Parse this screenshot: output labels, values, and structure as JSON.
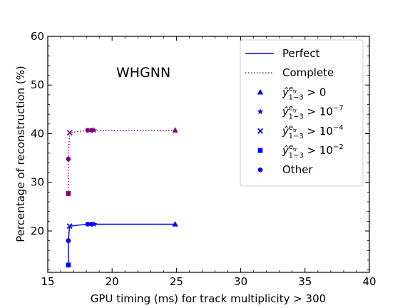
{
  "chart_data": {
    "type": "scatter",
    "annotation": "WHGNN",
    "xlabel": "GPU timing (ms) for track multiplicity > 300",
    "ylabel": "Percentage of reconstruction (%)",
    "xlim": [
      15,
      40
    ],
    "ylim": [
      11.5,
      60
    ],
    "xticks": [
      15,
      20,
      25,
      30,
      35,
      40
    ],
    "yticks": [
      20,
      30,
      40,
      50,
      60
    ],
    "grid": false,
    "legend_placement": "top-right",
    "colors": {
      "perfect": "#0000ff",
      "complete": "#800080"
    },
    "series": [
      {
        "name": "Perfect",
        "line": "solid",
        "color": "#0000ff",
        "points": [
          {
            "x": 16.6,
            "y": 13.0,
            "marker": "square"
          },
          {
            "x": 16.6,
            "y": 18.0,
            "marker": "circle"
          },
          {
            "x": 16.7,
            "y": 21.0,
            "marker": "x"
          },
          {
            "x": 18.1,
            "y": 21.4,
            "marker": "circle"
          },
          {
            "x": 18.4,
            "y": 21.4,
            "marker": "circle"
          },
          {
            "x": 18.6,
            "y": 21.4,
            "marker": "star"
          },
          {
            "x": 24.9,
            "y": 21.4,
            "marker": "triangle"
          }
        ]
      },
      {
        "name": "Complete",
        "line": "dotted",
        "color": "#800080",
        "points": [
          {
            "x": 16.6,
            "y": 27.7,
            "marker": "square"
          },
          {
            "x": 16.6,
            "y": 34.8,
            "marker": "circle"
          },
          {
            "x": 16.7,
            "y": 40.2,
            "marker": "x"
          },
          {
            "x": 18.1,
            "y": 40.7,
            "marker": "circle"
          },
          {
            "x": 18.4,
            "y": 40.7,
            "marker": "circle"
          },
          {
            "x": 18.6,
            "y": 40.7,
            "marker": "star"
          },
          {
            "x": 24.9,
            "y": 40.7,
            "marker": "triangle"
          }
        ]
      }
    ],
    "legend": [
      {
        "kind": "line",
        "style": "solid",
        "label": "Perfect"
      },
      {
        "kind": "line",
        "style": "dotted",
        "label": "Complete"
      },
      {
        "kind": "marker",
        "marker": "triangle",
        "base": "ŷ",
        "sup": "e",
        "supsub": "tr",
        "sub": "1−3",
        "rel": " > 0",
        "exp": ""
      },
      {
        "kind": "marker",
        "marker": "star",
        "base": "ŷ",
        "sup": "e",
        "supsub": "tr",
        "sub": "1−3",
        "rel": " > 10",
        "exp": "−7"
      },
      {
        "kind": "marker",
        "marker": "x",
        "base": "ŷ",
        "sup": "e",
        "supsub": "tr",
        "sub": "1−3",
        "rel": " > 10",
        "exp": "−4"
      },
      {
        "kind": "marker",
        "marker": "square",
        "base": "ŷ",
        "sup": "e",
        "supsub": "tr",
        "sub": "1−3",
        "rel": " > 10",
        "exp": "−2"
      },
      {
        "kind": "marker",
        "marker": "circle",
        "label": "Other"
      }
    ]
  }
}
